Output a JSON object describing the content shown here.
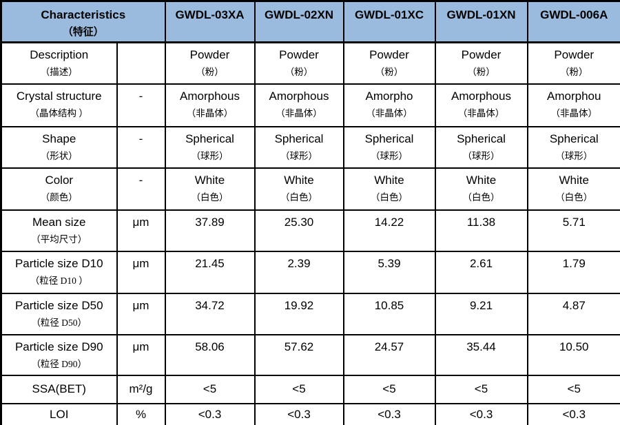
{
  "colors": {
    "header_bg": "#9BBBDE",
    "border": "#000000",
    "text": "#000000"
  },
  "header": {
    "characteristics_en": "Characteristics",
    "characteristics_zh": "（特征）",
    "products": [
      "GWDL-03XA",
      "GWDL-02XN",
      "GWDL-01XC",
      "GWDL-01XN",
      "GWDL-006A"
    ]
  },
  "rows": [
    {
      "label_en": "Description",
      "label_zh": "（描述）",
      "unit": "",
      "values": [
        {
          "text": "Powder",
          "sub": "（粉）"
        },
        {
          "text": "Powder",
          "sub": "（粉）"
        },
        {
          "text": "Powder",
          "sub": "（粉）"
        },
        {
          "text": "Powder",
          "sub": "（粉）"
        },
        {
          "text": "Powder",
          "sub": "（粉）"
        }
      ]
    },
    {
      "label_en": "Crystal structure",
      "label_zh": "（晶体结构 ）",
      "unit": "-",
      "values": [
        {
          "text": "Amorphous",
          "sub": "（非晶体）"
        },
        {
          "text": "Amorphous",
          "sub": "（非晶体）"
        },
        {
          "text": "Amorpho",
          "sub": "（非晶体）"
        },
        {
          "text": "Amorphous",
          "sub": "（非晶体）"
        },
        {
          "text": "Amorphou",
          "sub": "（非晶体）"
        }
      ]
    },
    {
      "label_en": "Shape",
      "label_zh": "（形状）",
      "unit": "-",
      "values": [
        {
          "text": "Spherical",
          "sub": "（球形）"
        },
        {
          "text": "Spherical",
          "sub": "（球形）"
        },
        {
          "text": "Spherical",
          "sub": "（球形）"
        },
        {
          "text": "Spherical",
          "sub": "（球形）"
        },
        {
          "text": "Spherical",
          "sub": "（球形）"
        }
      ]
    },
    {
      "label_en": "Color",
      "label_zh": "（颜色）",
      "unit": "-",
      "values": [
        {
          "text": "White",
          "sub": "（白色）"
        },
        {
          "text": "White",
          "sub": "（白色）"
        },
        {
          "text": "White",
          "sub": "（白色）"
        },
        {
          "text": "White",
          "sub": "（白色）"
        },
        {
          "text": "White",
          "sub": "（白色）"
        }
      ]
    },
    {
      "label_en": "Mean size",
      "label_zh": "（平均尺寸）",
      "unit": "μm",
      "values": [
        {
          "text": "37.89"
        },
        {
          "text": "25.30"
        },
        {
          "text": "14.22"
        },
        {
          "text": "11.38"
        },
        {
          "text": "5.71"
        }
      ]
    },
    {
      "label_en": "Particle size D10",
      "label_zh": "（粒径  D10 ）",
      "unit": "μm",
      "values": [
        {
          "text": "21.45"
        },
        {
          "text": "2.39"
        },
        {
          "text": "5.39"
        },
        {
          "text": "2.61"
        },
        {
          "text": "1.79"
        }
      ]
    },
    {
      "label_en": "Particle size D50",
      "label_zh": "（粒径  D50）",
      "unit": "μm",
      "values": [
        {
          "text": "34.72"
        },
        {
          "text": "19.92"
        },
        {
          "text": "10.85"
        },
        {
          "text": "9.21"
        },
        {
          "text": "4.87"
        }
      ]
    },
    {
      "label_en": "Particle size D90",
      "label_zh": "（粒径  D90）",
      "unit": "μm",
      "values": [
        {
          "text": "58.06"
        },
        {
          "text": "57.62"
        },
        {
          "text": "24.57"
        },
        {
          "text": "35.44"
        },
        {
          "text": "10.50"
        }
      ]
    },
    {
      "label_en": "SSA(BET)",
      "label_zh": "",
      "unit": "m²/g",
      "values": [
        {
          "text": "<5"
        },
        {
          "text": "<5"
        },
        {
          "text": "<5"
        },
        {
          "text": "<5"
        },
        {
          "text": "<5"
        }
      ]
    },
    {
      "label_en": "LOI",
      "label_zh": "",
      "unit": "%",
      "values": [
        {
          "text": "<0.3"
        },
        {
          "text": "<0.3"
        },
        {
          "text": "<0.3"
        },
        {
          "text": "<0.3"
        },
        {
          "text": "<0.3"
        }
      ]
    }
  ]
}
